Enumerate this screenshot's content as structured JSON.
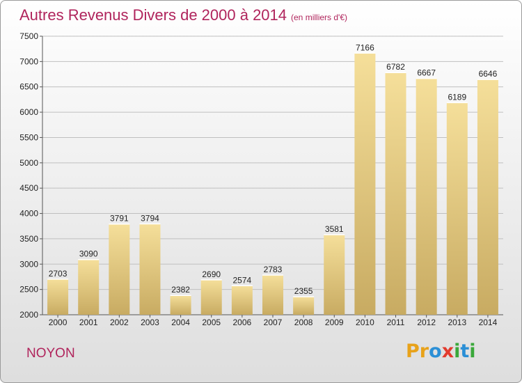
{
  "title": "Autres Revenus Divers de 2000 à 2014",
  "subtitle": "(en milliers d'€)",
  "commune": "NOYON",
  "logo": {
    "letters": [
      "P",
      "r",
      "o",
      "x",
      "i",
      "t",
      "i"
    ],
    "colors": [
      "#e8a21a",
      "#e8a21a",
      "#2b8fd6",
      "#e23b2e",
      "#3aa83a",
      "#2b8fd6",
      "#3aa83a"
    ]
  },
  "colors": {
    "title": "#b0245c",
    "bar_light": "#f5df9a",
    "bar_dark": "#c8ab62",
    "grid": "#bfbfbf"
  },
  "chart_data": {
    "type": "bar",
    "categories": [
      "2000",
      "2001",
      "2002",
      "2003",
      "2004",
      "2005",
      "2006",
      "2007",
      "2008",
      "2009",
      "2010",
      "2011",
      "2012",
      "2013",
      "2014"
    ],
    "values": [
      2703,
      3090,
      3791,
      3794,
      2382,
      2690,
      2574,
      2783,
      2355,
      3581,
      7166,
      6782,
      6667,
      6189,
      6646
    ],
    "ylim": [
      2000,
      7500
    ],
    "yticks": [
      2000,
      2500,
      3000,
      3500,
      4000,
      4500,
      5000,
      5500,
      6000,
      6500,
      7000,
      7500
    ],
    "grid": true
  }
}
